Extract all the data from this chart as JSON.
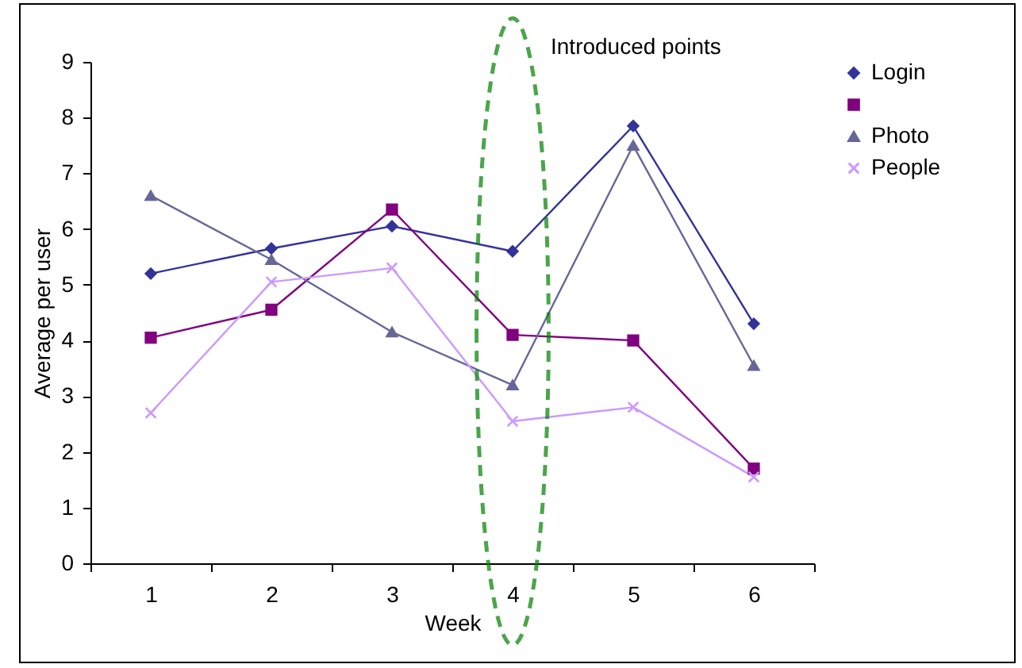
{
  "chart_data": {
    "type": "line",
    "xlabel": "Week",
    "ylabel": "Average per user",
    "categories": [
      "1",
      "2",
      "3",
      "4",
      "5",
      "6"
    ],
    "series": [
      {
        "name": "Login",
        "color": "#333399",
        "marker": "diamond",
        "values": [
          5.2,
          5.65,
          6.05,
          5.6,
          7.85,
          4.3
        ]
      },
      {
        "color": "#800080",
        "marker": "square",
        "values": [
          4.05,
          4.55,
          6.35,
          4.1,
          4.0,
          1.7
        ]
      },
      {
        "name": "Photo",
        "color": "#666699",
        "marker": "triangle",
        "values": [
          6.6,
          5.45,
          4.15,
          3.2,
          7.5,
          3.55
        ]
      },
      {
        "name": "People",
        "color": "#cc99ff",
        "marker": "cross",
        "values": [
          2.7,
          5.05,
          5.3,
          2.55,
          2.8,
          1.55
        ]
      }
    ],
    "ylim": [
      0,
      9
    ],
    "yticks": [
      0,
      1,
      2,
      3,
      4,
      5,
      6,
      7,
      8,
      9
    ],
    "grid": false,
    "legend": "right",
    "line_style": "solid",
    "annotations": [
      "Introduced points"
    ]
  }
}
